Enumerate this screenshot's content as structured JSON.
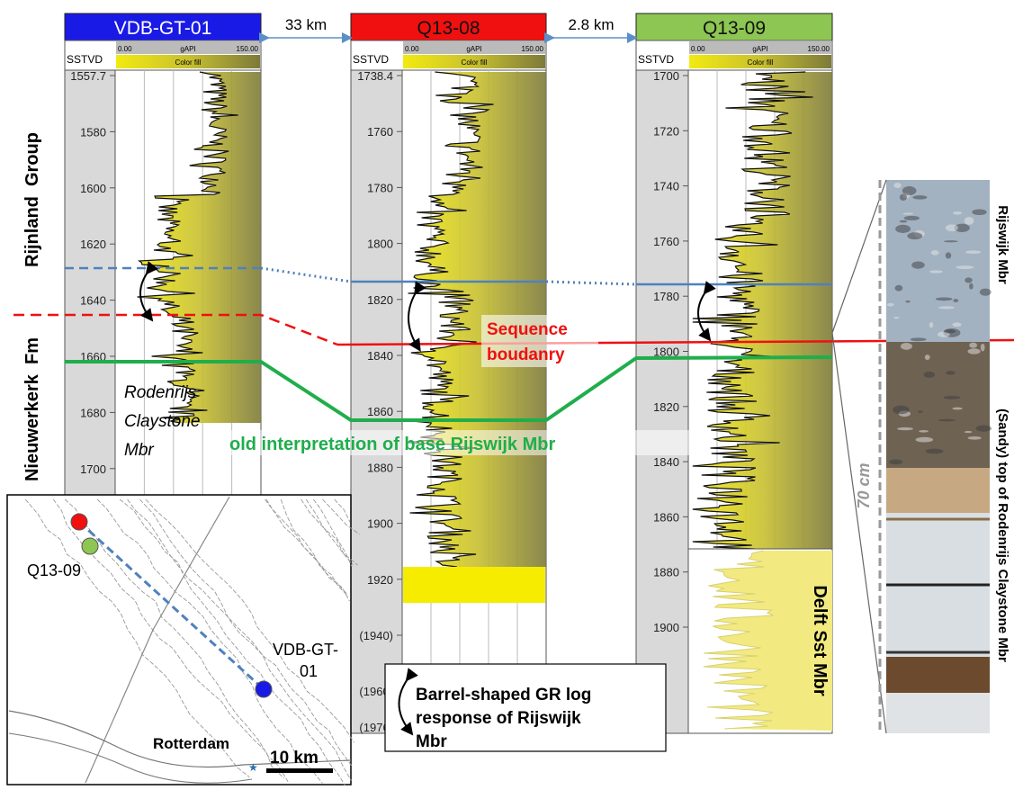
{
  "wells": [
    {
      "name": "VDB-GT-01",
      "depths": [
        "1557.7",
        "1580",
        "1600",
        "1620",
        "1640",
        "1660",
        "1680",
        "1700"
      ]
    },
    {
      "name": "Q13-08",
      "depths": [
        "1738.4",
        "1760",
        "1780",
        "1800",
        "1820",
        "1840",
        "1860",
        "1880",
        "1900",
        "1920",
        "(1940)",
        "(1960)",
        "(1976)"
      ]
    },
    {
      "name": "Q13-09",
      "depths": [
        "1700",
        "1720",
        "1740",
        "1760",
        "1780",
        "1800",
        "1820",
        "1840",
        "1860",
        "1880",
        "1900"
      ]
    }
  ],
  "distances": [
    "33 km",
    "2.8 km"
  ],
  "track_header": {
    "depth": "SSTVD",
    "min": "0.00",
    "unit": "gAPI",
    "max": "150.00",
    "fill": "Color fill"
  },
  "units": [
    "Rijnland  Group",
    "Nieuwerkerk  Fm"
  ],
  "annotations": {
    "rodenrijs": [
      "Rodenrijs",
      "Claystone",
      "Mbr"
    ],
    "sequence": [
      "Sequence",
      "boudanry"
    ],
    "old_interpretation": "old interpretation of base Rijswijk Mbr",
    "delft": "Delft Sst Mbr",
    "legend": [
      "Barrel-shaped GR log",
      "response of Rijswijk",
      "Mbr"
    ]
  },
  "map": {
    "labels": [
      "Q13-09",
      "VDB-GT-",
      "01",
      "Rotterdam"
    ],
    "scale": "10 km"
  },
  "core": {
    "length": "70 cm",
    "upper": "Rijswijk Mbr",
    "lower": "(Sandy) top of Rodenrijs Claystone Mbr"
  }
}
